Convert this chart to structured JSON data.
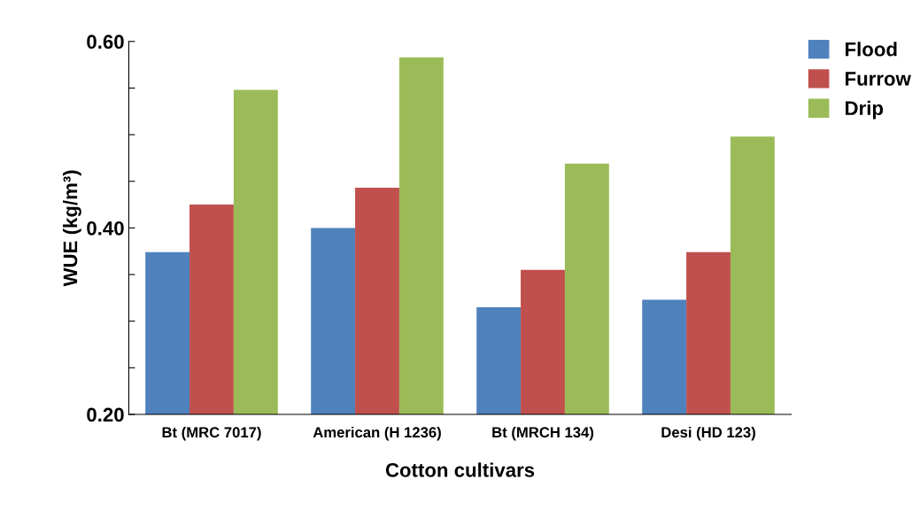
{
  "chart_data": {
    "type": "bar",
    "xlabel": "Cotton cultivars",
    "ylabel": "WUE (kg/m³)",
    "categories": [
      "Bt (MRC 7017)",
      "American (H 1236)",
      "Bt (MRCH 134)",
      "Desi (HD 123)"
    ],
    "series": [
      {
        "name": "Flood",
        "color": "#4f81bd",
        "values": [
          0.374,
          0.4,
          0.315,
          0.323
        ]
      },
      {
        "name": "Furrow",
        "color": "#c0504d",
        "values": [
          0.425,
          0.443,
          0.355,
          0.374
        ]
      },
      {
        "name": "Drip",
        "color": "#9bbb59",
        "values": [
          0.548,
          0.583,
          0.469,
          0.498
        ]
      }
    ],
    "ylim": [
      0.2,
      0.6
    ],
    "yticks": [
      {
        "value": 0.2,
        "label": "0.20"
      },
      {
        "value": 0.25,
        "label": null
      },
      {
        "value": 0.3,
        "label": null
      },
      {
        "value": 0.35,
        "label": null
      },
      {
        "value": 0.4,
        "label": "0.40"
      },
      {
        "value": 0.45,
        "label": null
      },
      {
        "value": 0.5,
        "label": null
      },
      {
        "value": 0.55,
        "label": null
      },
      {
        "value": 0.6,
        "label": "0.60"
      }
    ],
    "grid": false,
    "legend": "top right"
  }
}
